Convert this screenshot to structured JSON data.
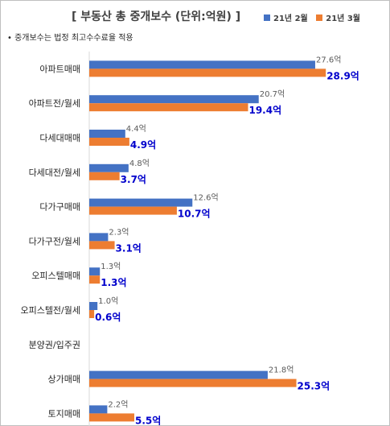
{
  "header": {
    "title": "[ 부동산 총 중개보수 (단위:억원) ]",
    "note": "• 중개보수는 법정 최고수수료율 적용"
  },
  "chart_data": {
    "type": "bar",
    "orientation": "horizontal",
    "title": "[ 부동산 총 중개보수 (단위:억원) ]",
    "unit_suffix": "억",
    "categories": [
      "아파트매매",
      "아파트전/월세",
      "다세대매매",
      "다세대전/월세",
      "다가구매매",
      "다가구전/월세",
      "오피스텔매매",
      "오피스텔전/월세",
      "분양권/입주권",
      "상가매매",
      "토지매매"
    ],
    "series": [
      {
        "name": "21년 2월",
        "color": "#4472c4",
        "values": [
          27.6,
          20.7,
          4.4,
          4.8,
          12.6,
          2.3,
          1.3,
          1.0,
          null,
          21.8,
          2.2
        ],
        "labels": [
          "27.6억",
          "20.7억",
          "4.4억",
          "4.8억",
          "12.6억",
          "2.3억",
          "1.3억",
          "1.0억",
          "",
          "21.8억",
          "2.2억"
        ]
      },
      {
        "name": "21년 3월",
        "color": "#ed7d31",
        "values": [
          28.9,
          19.4,
          4.9,
          3.7,
          10.7,
          3.1,
          1.3,
          0.6,
          null,
          25.3,
          5.5
        ],
        "labels": [
          "28.9억",
          "19.4억",
          "4.9억",
          "3.7억",
          "10.7억",
          "3.1억",
          "1.3억",
          "0.6억",
          "",
          "25.3억",
          "5.5억"
        ]
      }
    ],
    "label_colors": {
      "prev": "#595959",
      "curr": "#0000cc"
    },
    "legend_position": "top-right",
    "grid": false
  }
}
